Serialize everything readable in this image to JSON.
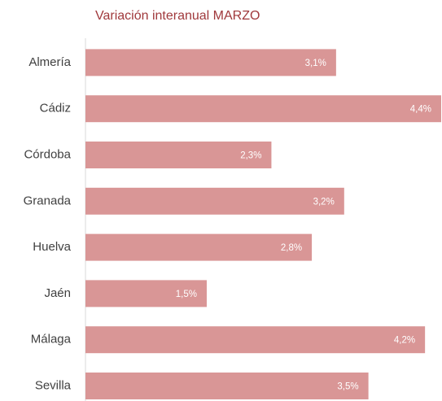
{
  "chart_data": {
    "type": "bar",
    "orientation": "horizontal",
    "title": "Variación interanual MARZO",
    "categories": [
      "Almería",
      "Cádiz",
      "Córdoba",
      "Granada",
      "Huelva",
      "Jaén",
      "Málaga",
      "Sevilla"
    ],
    "values": [
      3.1,
      4.4,
      2.3,
      3.2,
      2.8,
      1.5,
      4.2,
      3.5
    ],
    "value_labels": [
      "3,1%",
      "4,4%",
      "2,3%",
      "3,2%",
      "2,8%",
      "1,5%",
      "4,2%",
      "3,5%"
    ],
    "color": "#d99696"
  }
}
